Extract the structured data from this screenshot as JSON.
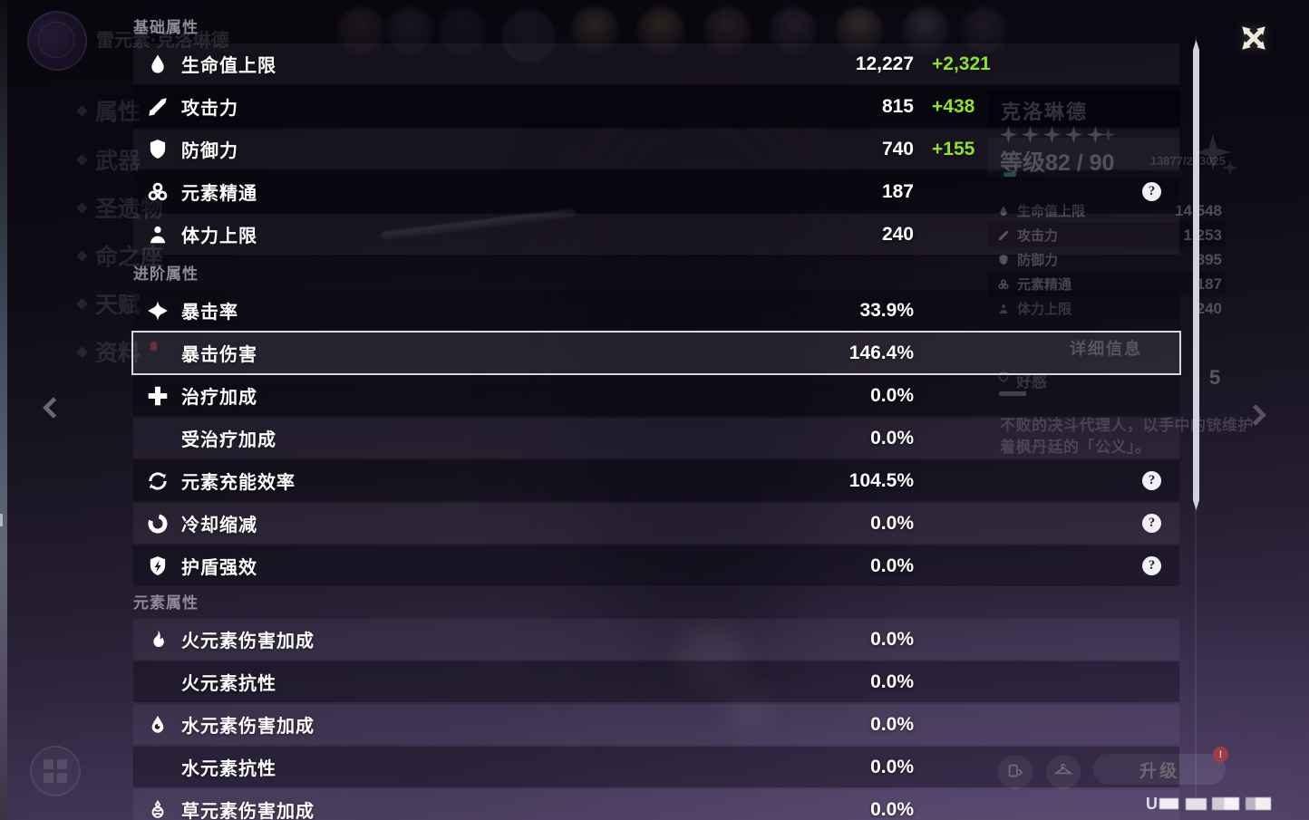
{
  "colors": {
    "bonus_green": "#8fe12b",
    "level_tick_teal": "#3fc3ba",
    "badge_red": "#b23a43",
    "selected_border": "#dad7e3"
  },
  "stats_panel": {
    "sections": [
      {
        "title": "基础属性",
        "rows": [
          {
            "icon": "hp-icon",
            "label": "生命值上限",
            "value": "12,227",
            "bonus": "+2,321"
          },
          {
            "icon": "atk-icon",
            "label": "攻击力",
            "value": "815",
            "bonus": "+438"
          },
          {
            "icon": "def-icon",
            "label": "防御力",
            "value": "740",
            "bonus": "+155"
          },
          {
            "icon": "elemental-mastery-icon",
            "label": "元素精通",
            "value": "187",
            "help": true
          },
          {
            "icon": "stamina-icon",
            "label": "体力上限",
            "value": "240"
          }
        ]
      },
      {
        "title": "进阶属性",
        "rows": [
          {
            "icon": "crit-rate-icon",
            "label": "暴击率",
            "value": "33.9%"
          },
          {
            "label": "暴击伤害",
            "value": "146.4%",
            "selected": true
          },
          {
            "icon": "healing-bonus-icon",
            "label": "治疗加成",
            "value": "0.0%"
          },
          {
            "label": "受治疗加成",
            "value": "0.0%"
          },
          {
            "icon": "energy-recharge-icon",
            "label": "元素充能效率",
            "value": "104.5%",
            "help": true
          },
          {
            "icon": "cooldown-reduction-icon",
            "label": "冷却缩减",
            "value": "0.0%",
            "help": true
          },
          {
            "icon": "shield-strength-icon",
            "label": "护盾强效",
            "value": "0.0%",
            "help": true
          }
        ]
      },
      {
        "title": "元素属性",
        "rows": [
          {
            "icon": "pyro-icon",
            "label": "火元素伤害加成",
            "value": "0.0%"
          },
          {
            "label": "火元素抗性",
            "value": "0.0%"
          },
          {
            "icon": "hydro-icon",
            "label": "水元素伤害加成",
            "value": "0.0%"
          },
          {
            "label": "水元素抗性",
            "value": "0.0%"
          },
          {
            "icon": "dendro-icon",
            "label": "草元素伤害加成",
            "value": "0.0%"
          }
        ]
      }
    ]
  },
  "background": {
    "element_title": "雷元素·克洛琳德",
    "sidebar_items": [
      "属性",
      "武器",
      "圣遗物",
      "命之座",
      "天赋",
      "资料"
    ],
    "character": {
      "name": "克洛琳德",
      "stars": 5,
      "level_label": "等级82 / 90",
      "exp": "13877/243025",
      "summary": [
        {
          "icon": "hp-icon",
          "label": "生命值上限",
          "value": "14,548"
        },
        {
          "icon": "atk-icon",
          "label": "攻击力",
          "value": "1,253"
        },
        {
          "icon": "def-icon",
          "label": "防御力",
          "value": "895"
        },
        {
          "icon": "elemental-mastery-icon",
          "label": "元素精通",
          "value": "187"
        },
        {
          "icon": "stamina-icon",
          "label": "体力上限",
          "value": "240"
        }
      ],
      "details_button": "详细信息",
      "friendship_label": "好感",
      "friendship_level": "5",
      "description": [
        "不败的决斗代理人，以手中的铳维护",
        "着枫丹廷的「公义」。"
      ],
      "upgrade_button": "升级",
      "badge_text": "!",
      "uid_prefix": "U"
    }
  }
}
